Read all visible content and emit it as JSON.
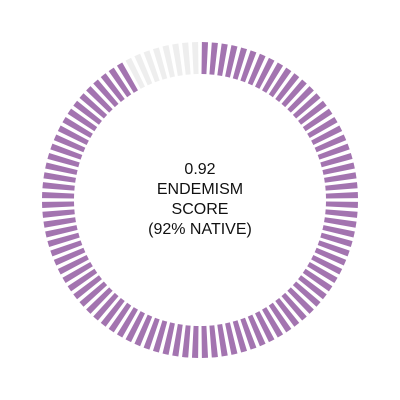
{
  "gauge": {
    "score_text": "0.92",
    "label_line1": "ENDEMISM",
    "label_line2": "SCORE",
    "label_line3": "(92% NATIVE)",
    "fraction": 0.92,
    "segment_count": 100,
    "colors": {
      "filled": "#a374b0",
      "empty": "#eeeeee"
    }
  }
}
